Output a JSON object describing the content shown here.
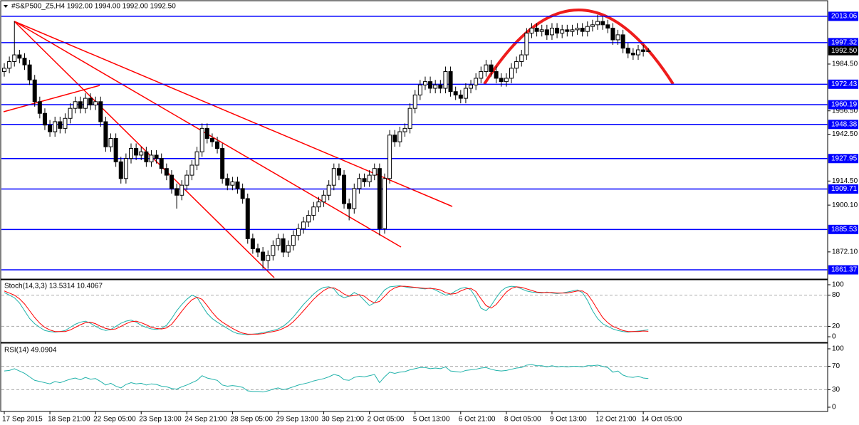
{
  "chart_data": [
    {
      "type": "candlestick",
      "title": "#S&P500_Z5,H4  1992.00 1994.00 1992.00 1992.50",
      "categories": [
        "17 Sep 2015",
        null,
        null,
        null,
        null,
        null,
        null,
        null,
        null,
        "18 Sep 21:00",
        null,
        null,
        null,
        null,
        null,
        null,
        null,
        null,
        "22 Sep 05:00",
        null,
        null,
        null,
        null,
        null,
        null,
        null,
        null,
        "23 Sep 13:00",
        null,
        null,
        null,
        null,
        null,
        null,
        null,
        null,
        "24 Sep 21:00",
        null,
        null,
        null,
        null,
        null,
        null,
        null,
        null,
        "28 Sep 05:00",
        null,
        null,
        null,
        null,
        null,
        null,
        null,
        null,
        "29 Sep 13:00",
        null,
        null,
        null,
        null,
        null,
        null,
        null,
        null,
        "30 Sep 21:00",
        null,
        null,
        null,
        null,
        null,
        null,
        null,
        null,
        "2 Oct 05:00",
        null,
        null,
        null,
        null,
        null,
        null,
        null,
        null,
        "5 Oct 13:00",
        null,
        null,
        null,
        null,
        null,
        null,
        null,
        null,
        "6 Oct 21:00",
        null,
        null,
        null,
        null,
        null,
        null,
        null,
        null,
        "8 Oct 05:00",
        null,
        null,
        null,
        null,
        null,
        null,
        null,
        null,
        "9 Oct 13:00",
        null,
        null,
        null,
        null,
        null,
        null,
        null,
        null,
        "12 Oct 21:00",
        null,
        null,
        null,
        null,
        null,
        null,
        null,
        null,
        "14 Oct 05:00",
        null
      ],
      "open": [
        1980,
        1982,
        1986,
        1990,
        1988,
        1984,
        1975,
        1962,
        1955,
        1948,
        1944,
        1950,
        1946,
        1952,
        1958,
        1962,
        1958,
        1964,
        1960,
        1962,
        1950,
        1935,
        1940,
        1926,
        1916,
        1928,
        1934,
        1930,
        1932,
        1926,
        1930,
        1928,
        1922,
        1918,
        1910,
        1906,
        1912,
        1918,
        1924,
        1932,
        1946,
        1940,
        1938,
        1934,
        1916,
        1912,
        1914,
        1910,
        1904,
        1880,
        1874,
        1872,
        1867,
        1870,
        1876,
        1880,
        1872,
        1876,
        1882,
        1886,
        1890,
        1894,
        1899,
        1902,
        1906,
        1912,
        1922,
        1918,
        1901,
        1898,
        1910,
        1916,
        1914,
        1918,
        1922,
        1886,
        1916,
        1942,
        1938,
        1944,
        1946,
        1958,
        1966,
        1972,
        1974,
        1970,
        1972,
        1970,
        1980,
        1968,
        1966,
        1964,
        1970,
        1972,
        1976,
        1980,
        1984,
        1980,
        1976,
        1974,
        1976,
        1982,
        1986,
        1990,
        2003,
        2006,
        2004,
        2005,
        2002,
        2006,
        2003,
        2005,
        2004,
        2005,
        2006,
        2004,
        2007,
        2008,
        2010,
        2008,
        2006,
        1999,
        2002,
        1994,
        1991,
        1990,
        1993,
        1992
      ],
      "high": [
        1985,
        1989,
        2010,
        1993,
        1991,
        1987,
        1978,
        1965,
        1958,
        1951,
        1953,
        1953,
        1955,
        1961,
        1965,
        1965,
        1967,
        1967,
        1965,
        1965,
        1953,
        1943,
        1943,
        1929,
        1931,
        1937,
        1937,
        1935,
        1935,
        1933,
        1933,
        1931,
        1925,
        1921,
        1913,
        1915,
        1921,
        1927,
        1935,
        1949,
        1949,
        1943,
        1941,
        1937,
        1919,
        1917,
        1917,
        1913,
        1907,
        1883,
        1877,
        1875,
        1873,
        1879,
        1883,
        1883,
        1879,
        1885,
        1889,
        1893,
        1897,
        1902,
        1905,
        1909,
        1915,
        1925,
        1925,
        1921,
        1904,
        1913,
        1919,
        1919,
        1921,
        1925,
        1925,
        1919,
        1945,
        1945,
        1947,
        1949,
        1961,
        1969,
        1975,
        1977,
        1977,
        1975,
        1975,
        1983,
        1983,
        1971,
        1969,
        1973,
        1975,
        1979,
        1983,
        1987,
        1987,
        1983,
        1979,
        1979,
        1985,
        1989,
        1993,
        2006,
        2009,
        2009,
        2008,
        2008,
        2009,
        2009,
        2008,
        2008,
        2008,
        2009,
        2009,
        2010,
        2011,
        2014,
        2013,
        2011,
        2009,
        2005,
        2005,
        1997,
        1994,
        1996,
        1996,
        1994
      ],
      "low": [
        1977,
        1979,
        1983,
        1985,
        1981,
        1972,
        1959,
        1952,
        1945,
        1941,
        1941,
        1943,
        1943,
        1949,
        1955,
        1955,
        1955,
        1957,
        1957,
        1947,
        1932,
        1932,
        1923,
        1913,
        1913,
        1925,
        1927,
        1927,
        1923,
        1923,
        1925,
        1919,
        1915,
        1907,
        1898,
        1903,
        1909,
        1915,
        1921,
        1929,
        1937,
        1935,
        1931,
        1913,
        1909,
        1909,
        1907,
        1901,
        1877,
        1871,
        1869,
        1862,
        1862,
        1867,
        1873,
        1869,
        1869,
        1873,
        1879,
        1883,
        1887,
        1891,
        1896,
        1899,
        1903,
        1909,
        1915,
        1898,
        1891,
        1895,
        1907,
        1911,
        1911,
        1915,
        1882,
        1883,
        1913,
        1935,
        1935,
        1941,
        1943,
        1955,
        1963,
        1969,
        1967,
        1967,
        1967,
        1967,
        1965,
        1963,
        1961,
        1961,
        1967,
        1969,
        1973,
        1977,
        1977,
        1973,
        1971,
        1971,
        1973,
        1979,
        1983,
        1987,
        2000,
        2001,
        2001,
        1999,
        1999,
        2000,
        2000,
        2001,
        2001,
        2002,
        2001,
        2001,
        2004,
        2005,
        2005,
        2003,
        1996,
        1996,
        1991,
        1988,
        1987,
        1987,
        1989,
        1992
      ],
      "close": [
        1982,
        1986,
        1990,
        1988,
        1984,
        1975,
        1962,
        1955,
        1948,
        1944,
        1950,
        1946,
        1952,
        1958,
        1962,
        1958,
        1964,
        1960,
        1962,
        1950,
        1935,
        1940,
        1926,
        1916,
        1928,
        1934,
        1930,
        1932,
        1926,
        1930,
        1928,
        1922,
        1918,
        1910,
        1906,
        1912,
        1918,
        1924,
        1932,
        1946,
        1940,
        1938,
        1934,
        1916,
        1912,
        1914,
        1910,
        1904,
        1880,
        1874,
        1872,
        1867,
        1870,
        1876,
        1880,
        1872,
        1876,
        1882,
        1886,
        1890,
        1894,
        1899,
        1902,
        1906,
        1912,
        1922,
        1918,
        1901,
        1898,
        1910,
        1916,
        1914,
        1918,
        1922,
        1886,
        1916,
        1942,
        1938,
        1944,
        1946,
        1958,
        1966,
        1972,
        1974,
        1970,
        1972,
        1970,
        1980,
        1968,
        1966,
        1964,
        1970,
        1972,
        1976,
        1980,
        1984,
        1980,
        1976,
        1974,
        1976,
        1982,
        1986,
        1990,
        2003,
        2006,
        2004,
        2005,
        2002,
        2006,
        2003,
        2005,
        2004,
        2005,
        2006,
        2004,
        2007,
        2008,
        2010,
        2008,
        2006,
        1999,
        2002,
        1994,
        1991,
        1990,
        1993,
        1992,
        1992.5
      ],
      "ylim": [
        1856.7,
        2020.7
      ],
      "yticks": [
        {
          "value": 1984.5,
          "label": "1984.50"
        },
        {
          "value": 1956.5,
          "label": "1956.50"
        },
        {
          "value": 1942.5,
          "label": "1942.50"
        },
        {
          "value": 1914.5,
          "label": "1914.50"
        },
        {
          "value": 1900.1,
          "label": "1900.10"
        },
        {
          "value": 1872.1,
          "label": "1872.10"
        }
      ],
      "levels": [
        2013.06,
        1997.32,
        1972.43,
        1960.19,
        1948.38,
        1927.95,
        1909.71,
        1885.53,
        1861.37
      ],
      "level_color": "#0000ff",
      "current_price": {
        "value": 1992.5,
        "label": "1992.50"
      }
    },
    {
      "type": "line",
      "title": "Stoch(14,3,3) 13.5314 10.4067",
      "ylim": [
        -6.8,
        106.8
      ],
      "yticks": [
        100,
        80,
        20,
        0
      ],
      "levels": [
        80,
        20
      ],
      "series": [
        {
          "color": "#20b2aa",
          "values": [
            85,
            80,
            75,
            65,
            50,
            35,
            25,
            18,
            12,
            10,
            9,
            10,
            12,
            18,
            24,
            28,
            30,
            26,
            20,
            15,
            12,
            14,
            20,
            26,
            30,
            32,
            28,
            22,
            18,
            15,
            14,
            16,
            22,
            35,
            50,
            62,
            72,
            80,
            76,
            60,
            45,
            35,
            28,
            22,
            16,
            10,
            6,
            5,
            4,
            5,
            6,
            8,
            10,
            12,
            15,
            20,
            28,
            38,
            50,
            62,
            72,
            82,
            90,
            95,
            96,
            92,
            80,
            75,
            78,
            85,
            80,
            70,
            60,
            65,
            78,
            90,
            96,
            97,
            98,
            96,
            94,
            95,
            93,
            92,
            94,
            90,
            85,
            80,
            82,
            88,
            93,
            95,
            90,
            75,
            55,
            50,
            60,
            75,
            88,
            95,
            97,
            96,
            92,
            88,
            86,
            85,
            84,
            86,
            84,
            83,
            84,
            86,
            88,
            90,
            85,
            70,
            50,
            35,
            25,
            20,
            15,
            12,
            10,
            9,
            10,
            11,
            12,
            13.5314
          ]
        },
        {
          "color": "#ff0000",
          "values": [
            88,
            84,
            80,
            73,
            63,
            50,
            37,
            26,
            18,
            13,
            10,
            10,
            10,
            13,
            18,
            23,
            27,
            28,
            25,
            20,
            16,
            14,
            15,
            20,
            25,
            29,
            30,
            27,
            23,
            18,
            16,
            15,
            17,
            24,
            36,
            49,
            61,
            71,
            76,
            72,
            60,
            47,
            36,
            28,
            22,
            16,
            11,
            7,
            5,
            5,
            5,
            6,
            8,
            10,
            12,
            16,
            21,
            29,
            39,
            50,
            61,
            72,
            81,
            89,
            94,
            94,
            89,
            82,
            78,
            79,
            81,
            78,
            70,
            65,
            68,
            78,
            88,
            94,
            97,
            97,
            96,
            95,
            94,
            93,
            93,
            92,
            90,
            85,
            82,
            83,
            88,
            92,
            93,
            87,
            73,
            60,
            55,
            62,
            74,
            86,
            93,
            96,
            95,
            92,
            89,
            86,
            85,
            85,
            85,
            84,
            84,
            84,
            86,
            88,
            88,
            82,
            68,
            52,
            37,
            27,
            20,
            16,
            12,
            10,
            10,
            10,
            11,
            10.4067
          ]
        }
      ]
    },
    {
      "type": "line",
      "title": "RSI(14) 49.0904",
      "ylim": [
        -7.3,
        108.5
      ],
      "yticks": [
        100,
        70,
        30,
        0
      ],
      "levels": [
        70,
        30
      ],
      "series": [
        {
          "color": "#20b2aa",
          "values": [
            62,
            63,
            66,
            62,
            58,
            52,
            46,
            44,
            42,
            40,
            44,
            42,
            45,
            48,
            50,
            47,
            51,
            48,
            49,
            44,
            38,
            41,
            36,
            33,
            39,
            42,
            40,
            41,
            38,
            40,
            39,
            36,
            35,
            32,
            31,
            35,
            38,
            42,
            46,
            54,
            50,
            48,
            46,
            38,
            36,
            37,
            36,
            34,
            28,
            27,
            27,
            26,
            28,
            31,
            33,
            30,
            32,
            35,
            38,
            40,
            42,
            45,
            47,
            49,
            52,
            56,
            54,
            47,
            46,
            51,
            53,
            52,
            54,
            56,
            42,
            52,
            60,
            58,
            60,
            61,
            64,
            66,
            68,
            68,
            66,
            67,
            66,
            69,
            62,
            61,
            60,
            63,
            64,
            65,
            67,
            68,
            65,
            63,
            62,
            63,
            65,
            67,
            68,
            72,
            73,
            71,
            71,
            69,
            71,
            69,
            70,
            69,
            70,
            70,
            69,
            71,
            71,
            72,
            70,
            68,
            60,
            62,
            55,
            52,
            51,
            53,
            50,
            49.0904
          ]
        }
      ]
    }
  ]
}
